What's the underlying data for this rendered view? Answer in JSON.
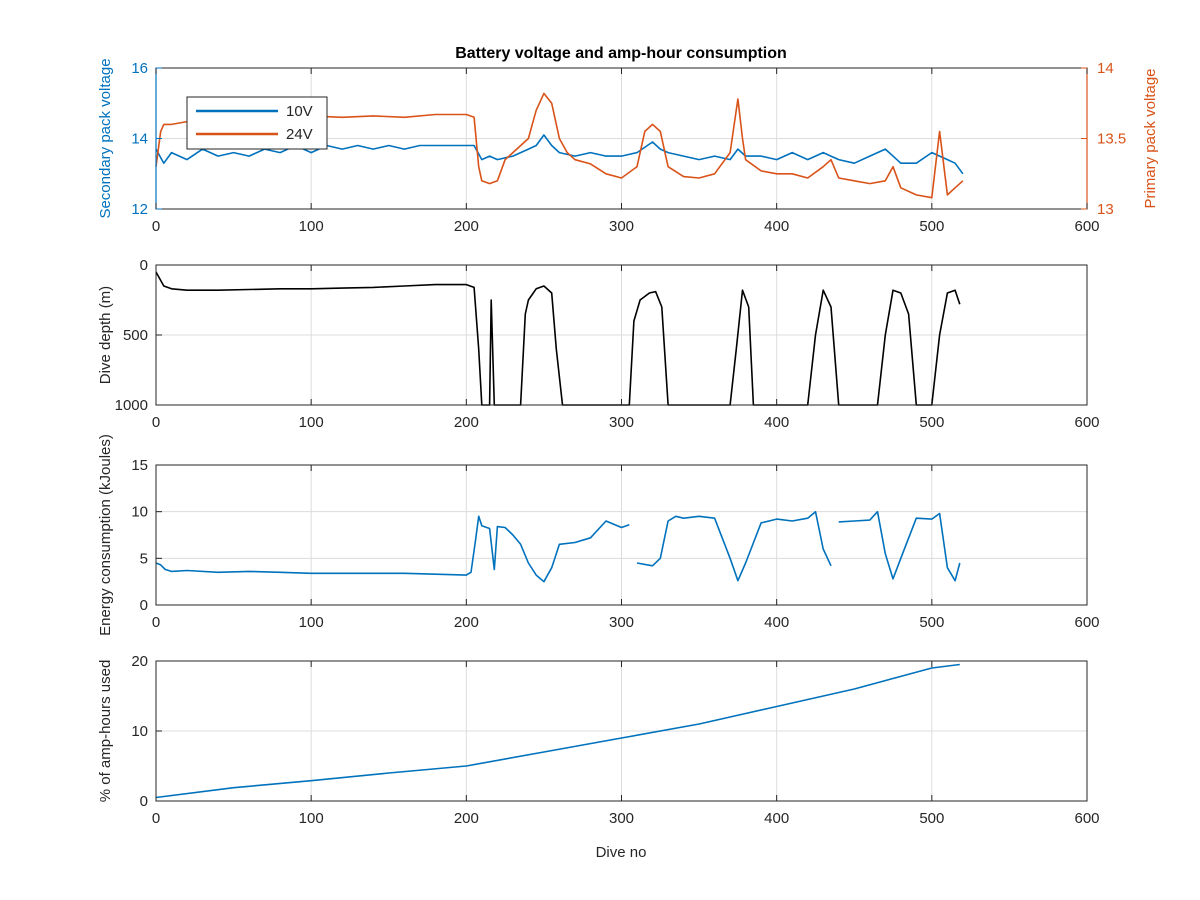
{
  "figure": {
    "title": "Battery voltage and amp-hour consumption",
    "xlabel": "Dive no"
  },
  "colors": {
    "blue": "#0072BD",
    "orange": "#D95319",
    "black": "#000000",
    "axis": "#262626",
    "grid": "#dcdcdc"
  },
  "chart_data": [
    {
      "type": "line",
      "xlim": [
        0,
        600
      ],
      "ylim": [
        12,
        16
      ],
      "y2lim": [
        13,
        14
      ],
      "xticks": [
        0,
        100,
        200,
        300,
        400,
        500,
        600
      ],
      "yticks": [
        12,
        14,
        16
      ],
      "y2ticks": [
        13,
        13.5,
        14
      ],
      "ylabel": "Secondary pack voltage",
      "y2label": "Primary pack voltage",
      "grid": true,
      "legend_position": "top-left",
      "series": [
        {
          "name": "10V",
          "axis": "left",
          "color": "#0072BD",
          "x": [
            0,
            5,
            10,
            20,
            30,
            40,
            50,
            60,
            70,
            80,
            90,
            100,
            110,
            120,
            130,
            140,
            150,
            160,
            170,
            180,
            190,
            200,
            205,
            210,
            215,
            220,
            230,
            240,
            245,
            250,
            255,
            260,
            270,
            280,
            290,
            300,
            310,
            320,
            325,
            330,
            340,
            350,
            360,
            370,
            375,
            380,
            390,
            400,
            410,
            420,
            430,
            440,
            450,
            460,
            470,
            480,
            490,
            500,
            505,
            510,
            515,
            520
          ],
          "y": [
            13.7,
            13.3,
            13.6,
            13.4,
            13.7,
            13.5,
            13.6,
            13.5,
            13.7,
            13.6,
            13.8,
            13.6,
            13.8,
            13.7,
            13.8,
            13.7,
            13.8,
            13.7,
            13.8,
            13.8,
            13.8,
            13.8,
            13.8,
            13.4,
            13.5,
            13.4,
            13.5,
            13.7,
            13.8,
            14.1,
            13.8,
            13.6,
            13.5,
            13.6,
            13.5,
            13.5,
            13.6,
            13.9,
            13.7,
            13.6,
            13.5,
            13.4,
            13.5,
            13.4,
            13.7,
            13.5,
            13.5,
            13.4,
            13.6,
            13.4,
            13.6,
            13.4,
            13.3,
            13.5,
            13.7,
            13.3,
            13.3,
            13.6,
            13.5,
            13.4,
            13.3,
            13.0
          ]
        },
        {
          "name": "24V",
          "axis": "right",
          "color": "#D95319",
          "x": [
            0,
            3,
            5,
            10,
            20,
            40,
            60,
            80,
            100,
            120,
            140,
            160,
            180,
            200,
            205,
            208,
            210,
            215,
            220,
            225,
            230,
            240,
            245,
            250,
            255,
            260,
            265,
            270,
            280,
            290,
            300,
            310,
            315,
            320,
            325,
            330,
            340,
            350,
            360,
            370,
            375,
            378,
            380,
            390,
            400,
            410,
            420,
            430,
            435,
            440,
            450,
            460,
            470,
            475,
            480,
            490,
            500,
            505,
            510,
            515,
            520
          ],
          "y": [
            13.3,
            13.55,
            13.6,
            13.6,
            13.62,
            13.63,
            13.65,
            13.64,
            13.66,
            13.65,
            13.66,
            13.65,
            13.67,
            13.67,
            13.65,
            13.3,
            13.2,
            13.18,
            13.2,
            13.35,
            13.4,
            13.5,
            13.7,
            13.82,
            13.75,
            13.5,
            13.4,
            13.35,
            13.32,
            13.25,
            13.22,
            13.3,
            13.55,
            13.6,
            13.55,
            13.3,
            13.23,
            13.22,
            13.25,
            13.4,
            13.78,
            13.5,
            13.35,
            13.27,
            13.25,
            13.25,
            13.22,
            13.3,
            13.35,
            13.22,
            13.2,
            13.18,
            13.2,
            13.3,
            13.15,
            13.1,
            13.08,
            13.55,
            13.1,
            13.15,
            13.2
          ]
        }
      ]
    },
    {
      "type": "line",
      "xlim": [
        0,
        600
      ],
      "ylim": [
        0,
        1000
      ],
      "y_reversed": true,
      "xticks": [
        0,
        100,
        200,
        300,
        400,
        500,
        600
      ],
      "yticks": [
        0,
        500,
        1000
      ],
      "ylabel": "Dive depth (m)",
      "grid": true,
      "series": [
        {
          "color": "#000000",
          "x": [
            0,
            5,
            10,
            20,
            40,
            60,
            80,
            100,
            120,
            140,
            160,
            180,
            200,
            205,
            208,
            210,
            212,
            215,
            216,
            218,
            220,
            222,
            230,
            235,
            238,
            240,
            245,
            250,
            255,
            258,
            262,
            270,
            290,
            300,
            305,
            308,
            312,
            318,
            322,
            326,
            330,
            335,
            350,
            370,
            374,
            378,
            382,
            385,
            390,
            410,
            420,
            425,
            430,
            435,
            440,
            445,
            450,
            465,
            470,
            475,
            480,
            485,
            490,
            500,
            505,
            510,
            515,
            518
          ],
          "y": [
            50,
            150,
            170,
            180,
            180,
            175,
            170,
            170,
            165,
            160,
            150,
            140,
            140,
            160,
            600,
            1000,
            1000,
            1000,
            250,
            1000,
            1000,
            1000,
            1000,
            1000,
            350,
            250,
            170,
            150,
            200,
            600,
            1000,
            1000,
            1000,
            1000,
            1000,
            400,
            250,
            200,
            190,
            300,
            1000,
            1000,
            1000,
            1000,
            600,
            180,
            300,
            1000,
            1000,
            1000,
            1000,
            500,
            180,
            300,
            1000,
            1000,
            1000,
            1000,
            500,
            180,
            200,
            350,
            1000,
            1000,
            500,
            200,
            180,
            280
          ]
        }
      ]
    },
    {
      "type": "line",
      "xlim": [
        0,
        600
      ],
      "ylim": [
        0,
        15
      ],
      "xticks": [
        0,
        100,
        200,
        300,
        400,
        500,
        600
      ],
      "yticks": [
        0,
        5,
        10,
        15
      ],
      "ylabel": "Energy consumption (kJoules)",
      "grid": true,
      "series": [
        {
          "color": "#0072BD",
          "x": [
            0,
            3,
            6,
            10,
            20,
            40,
            60,
            80,
            100,
            120,
            140,
            160,
            180,
            200,
            203,
            206,
            208,
            210,
            215,
            218,
            220,
            225,
            230,
            235,
            240,
            245,
            250,
            255,
            260,
            270,
            280,
            290,
            300,
            305,
            null,
            310,
            320,
            325,
            330,
            335,
            340,
            350,
            360,
            370,
            375,
            380,
            390,
            400,
            410,
            420,
            425,
            430,
            435,
            null,
            440,
            450,
            460,
            465,
            470,
            475,
            480,
            490,
            500,
            505,
            510,
            515,
            518
          ],
          "y": [
            4.5,
            4.3,
            3.8,
            3.6,
            3.7,
            3.5,
            3.6,
            3.5,
            3.4,
            3.4,
            3.4,
            3.4,
            3.3,
            3.2,
            3.5,
            7,
            9.5,
            8.5,
            8.2,
            3.8,
            8.4,
            8.3,
            7.5,
            6.5,
            4.5,
            3.2,
            2.5,
            4,
            6.5,
            6.7,
            7.2,
            9,
            8.3,
            8.6,
            null,
            4.5,
            4.2,
            5,
            9,
            9.5,
            9.3,
            9.5,
            9.3,
            5,
            2.6,
            4.5,
            8.8,
            9.2,
            9,
            9.3,
            10,
            6,
            4.2,
            null,
            8.9,
            9,
            9.1,
            10,
            5.5,
            2.8,
            5,
            9.3,
            9.2,
            9.8,
            4,
            2.6,
            4.5
          ]
        }
      ]
    },
    {
      "type": "line",
      "xlim": [
        0,
        600
      ],
      "ylim": [
        0,
        20
      ],
      "xticks": [
        0,
        100,
        200,
        300,
        400,
        500,
        600
      ],
      "yticks": [
        0,
        10,
        20
      ],
      "ylabel": "% of amp-hours used",
      "xlabel": "Dive no",
      "grid": true,
      "series": [
        {
          "color": "#0072BD",
          "x": [
            0,
            50,
            100,
            150,
            200,
            250,
            300,
            350,
            400,
            450,
            500,
            518
          ],
          "y": [
            0.5,
            1.9,
            2.9,
            4.0,
            5.0,
            7.0,
            9.0,
            11.0,
            13.5,
            16.0,
            19.0,
            19.5
          ]
        }
      ]
    }
  ]
}
